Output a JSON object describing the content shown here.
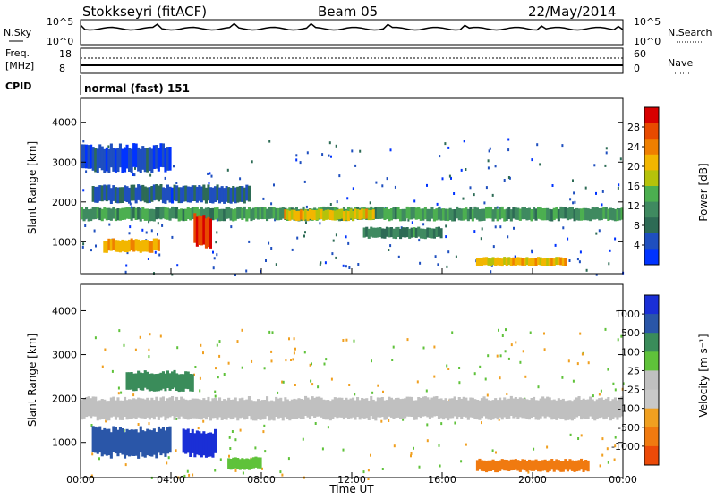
{
  "header": {
    "station": "Stokkseyri (fitACF)",
    "beam": "Beam 05",
    "date": "22/May/2014"
  },
  "top_panels": {
    "nsky_label": "N.Sky",
    "nsky_ticks": [
      "10^5",
      "10^0"
    ],
    "nsearch_label": "N.Search",
    "nsearch_ticks": [
      "10^5",
      "10^0"
    ],
    "freq_label": "Freq.",
    "freq_unit": "[MHz]",
    "freq_ticks": [
      "18",
      "8"
    ],
    "nave_label": "Nave",
    "nave_ticks": [
      "60",
      "0"
    ],
    "cpid_label": "CPID",
    "cpid_value": "normal (fast) 151"
  },
  "colors": {
    "power_scale": [
      "#0033ff",
      "#1f4fbf",
      "#2d6b55",
      "#3f8a60",
      "#4caf50",
      "#b5c20a",
      "#f2b600",
      "#ef7f00",
      "#e84a00",
      "#d80000"
    ],
    "velocity_scale": [
      "#1a2fd6",
      "#2a56a8",
      "#3a8c5a",
      "#5fc23a",
      "#c0c0c0",
      "#c8c8c8",
      "#f0a020",
      "#f07a10",
      "#ec4a08",
      "#d80000"
    ]
  },
  "chart_data": [
    {
      "type": "heatmap",
      "name": "power",
      "ylabel": "Slant Range [km]",
      "y_ticks": [
        1000,
        2000,
        3000,
        4000
      ],
      "ylim": [
        200,
        4600
      ],
      "colorbar_label": "Power [dB]",
      "colorbar_ticks": [
        "28",
        "24",
        "20",
        "16",
        "12",
        "8",
        "4"
      ],
      "colorbar_range": [
        0,
        32
      ],
      "bands": [
        {
          "t0": 0.0,
          "t1": 24.0,
          "r0": 1550,
          "r1": 1850,
          "level": 12,
          "note": "persistent band"
        },
        {
          "t0": 1.0,
          "t1": 3.5,
          "r0": 750,
          "r1": 1050,
          "level": 22
        },
        {
          "t0": 5.0,
          "t1": 5.8,
          "r0": 900,
          "r1": 1650,
          "level": 30
        },
        {
          "t0": 9.0,
          "t1": 13.0,
          "r0": 1550,
          "r1": 1800,
          "level": 20
        },
        {
          "t0": 12.5,
          "t1": 16.0,
          "r0": 1100,
          "r1": 1350,
          "level": 10
        },
        {
          "t0": 17.5,
          "t1": 21.5,
          "r0": 400,
          "r1": 600,
          "level": 20
        },
        {
          "t0": 0.5,
          "t1": 7.5,
          "r0": 2000,
          "r1": 2400,
          "level": 6
        },
        {
          "t0": 0.0,
          "t1": 4.0,
          "r0": 2800,
          "r1": 3400,
          "level": 4
        }
      ]
    },
    {
      "type": "heatmap",
      "name": "velocity",
      "xlabel": "Time UT",
      "x_ticks": [
        "00:00",
        "04:00",
        "08:00",
        "12:00",
        "16:00",
        "20:00",
        "00:00"
      ],
      "xlim": [
        0,
        24
      ],
      "ylabel": "Slant Range [km]",
      "y_ticks": [
        1000,
        2000,
        3000,
        4000
      ],
      "ylim": [
        200,
        4600
      ],
      "colorbar_label": "Velocity [m s⁻¹]",
      "colorbar_ticks": [
        "1000",
        "500",
        "100",
        "25",
        "-25",
        "-100",
        "-500",
        "-1000"
      ],
      "bands": [
        {
          "t0": 0.0,
          "t1": 24.0,
          "r0": 1550,
          "r1": 2000,
          "level": 25,
          "note": "gray band"
        },
        {
          "t0": 0.5,
          "t1": 4.0,
          "r0": 700,
          "r1": 1300,
          "level": 500
        },
        {
          "t0": 4.5,
          "t1": 6.0,
          "r0": 700,
          "r1": 1250,
          "level": 1000
        },
        {
          "t0": 17.5,
          "t1": 22.5,
          "r0": 350,
          "r1": 600,
          "level": -300
        },
        {
          "t0": 6.5,
          "t1": 8.0,
          "r0": 400,
          "r1": 650,
          "level": 100
        },
        {
          "t0": 2.0,
          "t1": 5.0,
          "r0": 2200,
          "r1": 2600,
          "level": 200
        }
      ]
    }
  ]
}
